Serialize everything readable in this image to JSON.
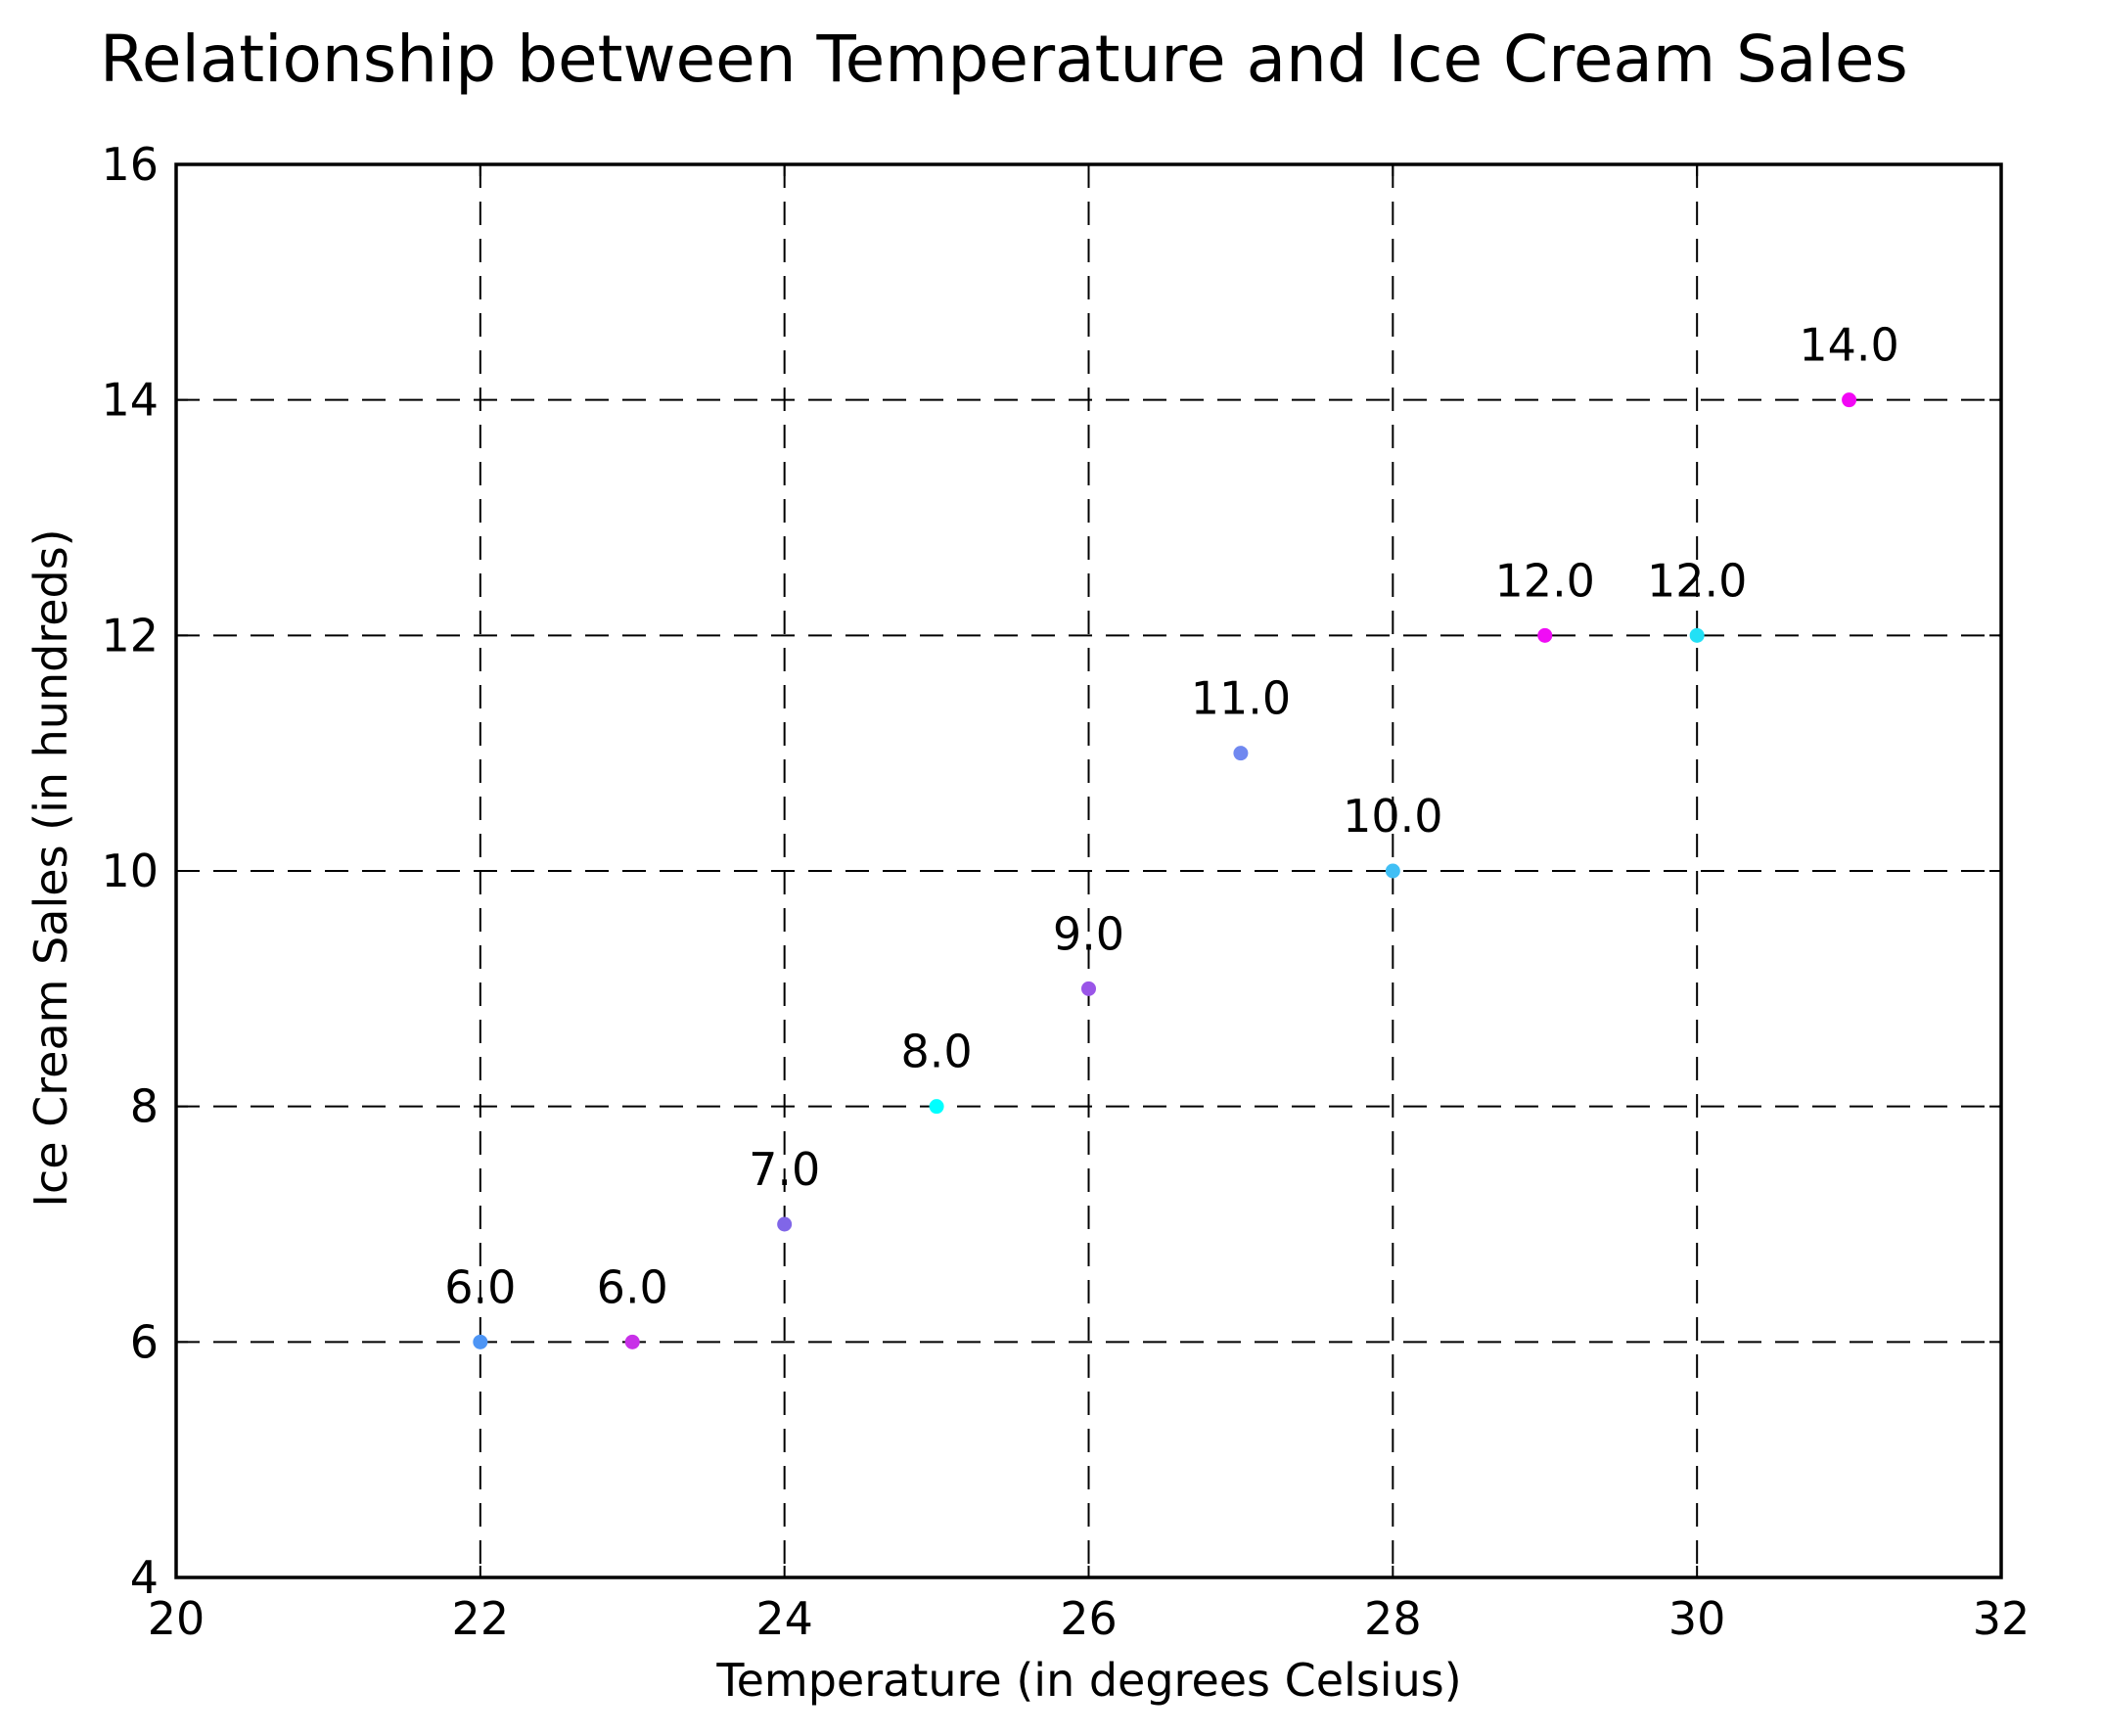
{
  "chart_data": {
    "type": "scatter",
    "title": "Relationship between Temperature and Ice Cream Sales",
    "xlabel": "Temperature (in degrees Celsius)",
    "ylabel": "Ice Cream Sales (in hundreds)",
    "xlim": [
      20,
      32
    ],
    "ylim": [
      4,
      16
    ],
    "xticks": [
      20,
      22,
      24,
      26,
      28,
      30,
      32
    ],
    "yticks": [
      4,
      6,
      8,
      10,
      12,
      14,
      16
    ],
    "xtick_labels": [
      "20",
      "22",
      "24",
      "26",
      "28",
      "30",
      "32"
    ],
    "ytick_labels": [
      "4",
      "6",
      "8",
      "10",
      "12",
      "14",
      "16"
    ],
    "grid": true,
    "legend": false,
    "points": [
      {
        "x": 22,
        "y": 6,
        "label": "6.0",
        "color": "#4d95f5"
      },
      {
        "x": 23,
        "y": 6,
        "label": "6.0",
        "color": "#c830e8"
      },
      {
        "x": 24,
        "y": 7,
        "label": "7.0",
        "color": "#8066e8"
      },
      {
        "x": 25,
        "y": 8,
        "label": "8.0",
        "color": "#00ffff"
      },
      {
        "x": 26,
        "y": 9,
        "label": "9.0",
        "color": "#9a55e8"
      },
      {
        "x": 27,
        "y": 11,
        "label": "11.0",
        "color": "#7088f0"
      },
      {
        "x": 28,
        "y": 10,
        "label": "10.0",
        "color": "#40bff5"
      },
      {
        "x": 29,
        "y": 12,
        "label": "12.0",
        "color": "#f00cf5"
      },
      {
        "x": 30,
        "y": 12,
        "label": "12.0",
        "color": "#22e0f5"
      },
      {
        "x": 31,
        "y": 14,
        "label": "14.0",
        "color": "#f207f5"
      }
    ]
  }
}
